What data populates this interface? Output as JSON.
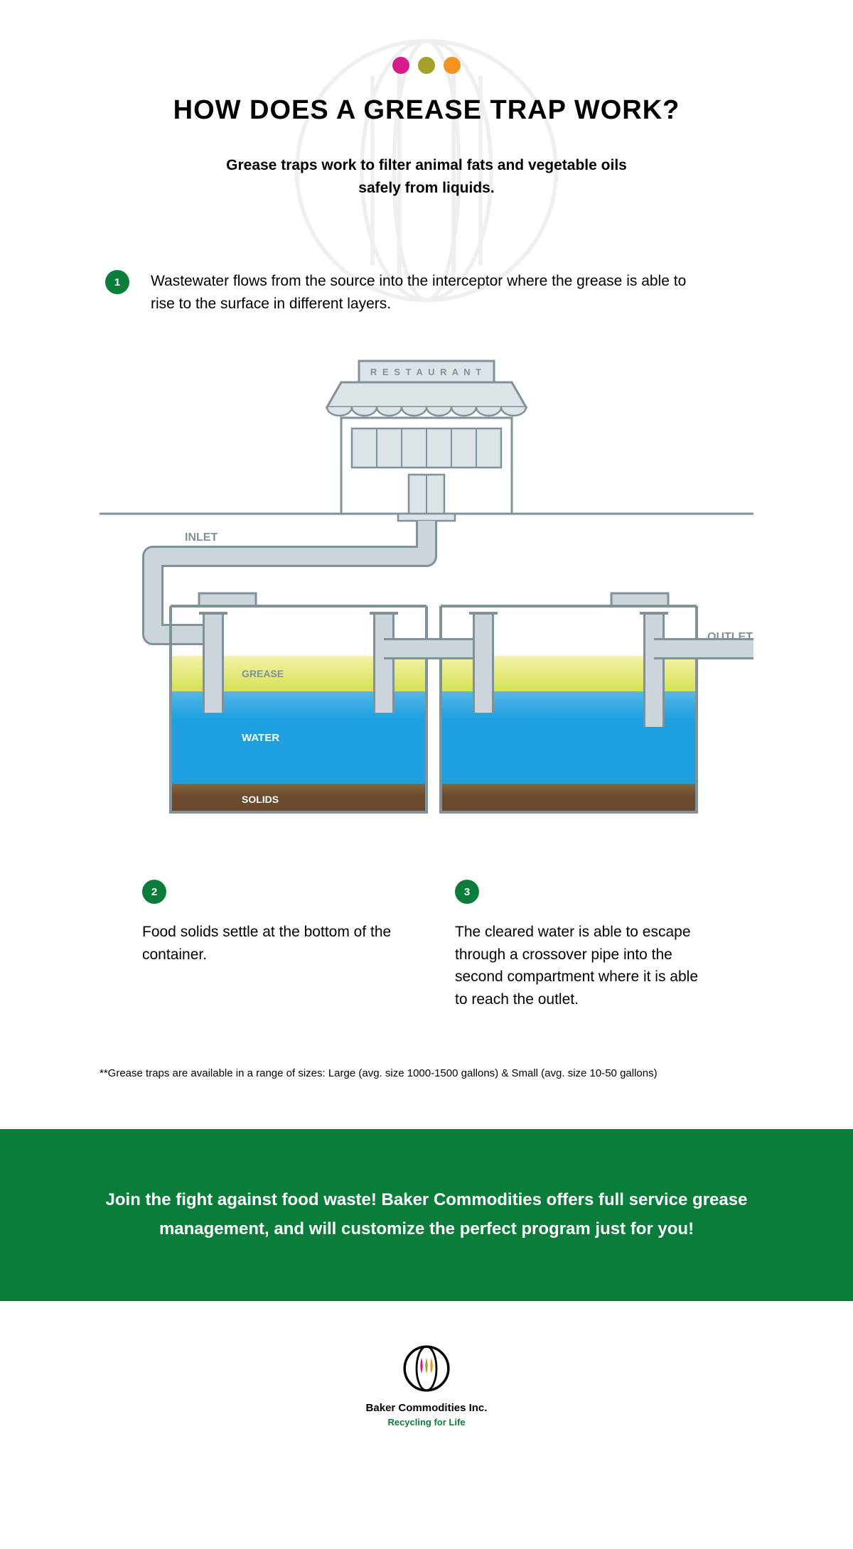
{
  "header": {
    "dot_colors": [
      "#d91c8b",
      "#a8a129",
      "#f39322"
    ],
    "title": "HOW DOES A GREASE TRAP WORK?",
    "subtitle": "Grease traps work to filter animal fats and vegetable oils safely from liquids."
  },
  "steps": [
    {
      "num": "1",
      "text": "Wastewater flows from the source into the interceptor where the grease is able to rise to the surface in different layers."
    },
    {
      "num": "2",
      "text": "Food solids settle at the bottom of the container."
    },
    {
      "num": "3",
      "text": "The cleared water is able to escape through a crossover pipe into the second compartment where it is able to reach the outlet."
    }
  ],
  "diagram": {
    "restaurant_label": "R E S T A U R A N T",
    "inlet_label": "INLET",
    "outlet_label": "OUTLET",
    "grease_label": "GREASE",
    "water_label": "WATER",
    "solids_label": "SOLIDS",
    "colors": {
      "pipe_fill": "#cbd5db",
      "pipe_stroke": "#7f9199",
      "building_fill": "#dde4e8",
      "building_stroke": "#7f9199",
      "ground_line": "#7f9199",
      "tank_stroke": "#7f9199",
      "grease_top": "#f5f0a8",
      "grease_bottom": "#d4e254",
      "water": "#1e9fe0",
      "water_light": "#54b8e8",
      "solids": "#6b4a2e",
      "solids_top": "#8a6640",
      "label": "#7f9199",
      "label_white": "#ffffff"
    }
  },
  "footnote": "**Grease traps are available in a range of sizes: Large (avg. size 1000-1500 gallons) & Small (avg. size 10-50 gallons)",
  "cta": {
    "bg_color": "#0b7d3a",
    "text": "Join the fight against food waste! Baker Commodities offers full service grease management, and will customize the perfect program just for you!"
  },
  "logo": {
    "company": "Baker Commodities Inc.",
    "tagline": "Recycling for Life",
    "tagline_color": "#0b7d3a",
    "dot_colors": [
      "#d91c8b",
      "#a8a129",
      "#f39322"
    ]
  },
  "badge_color": "#0b7d3a"
}
